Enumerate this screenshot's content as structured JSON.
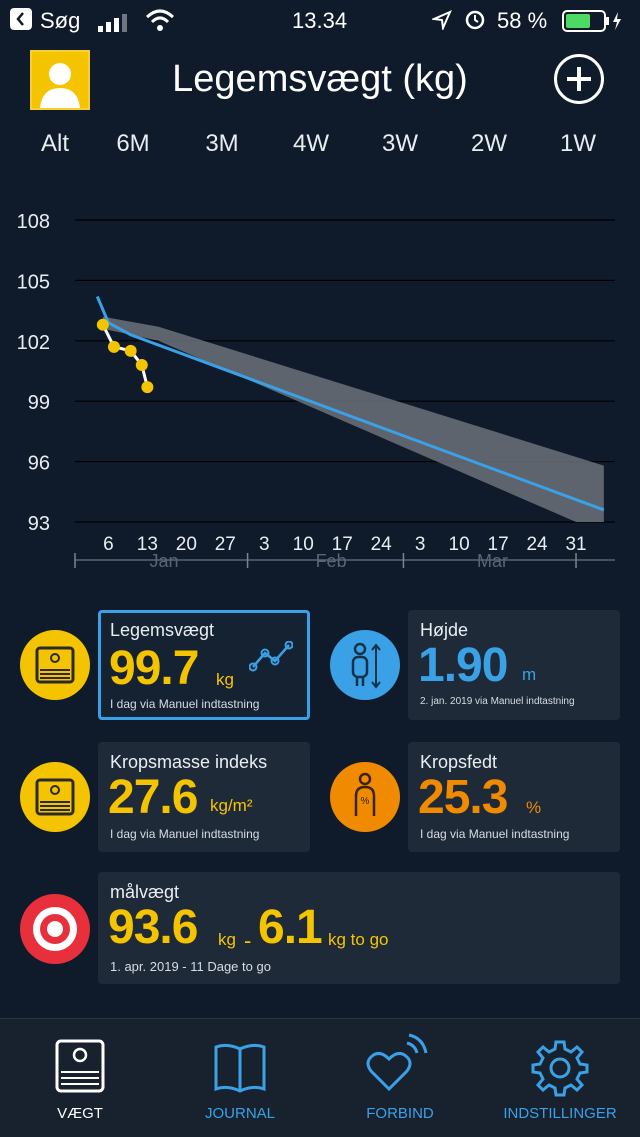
{
  "status_bar": {
    "back_label": "Søg",
    "time": "13.34",
    "battery": "58 %"
  },
  "header": {
    "title": "Legemsvægt (kg)"
  },
  "range_tabs": [
    "Alt",
    "6M",
    "3M",
    "4W",
    "3W",
    "2W",
    "1W"
  ],
  "chart_data": {
    "type": "line",
    "ylim": [
      93,
      108
    ],
    "y_ticks": [
      "108",
      "105",
      "102",
      "99",
      "96",
      "93"
    ],
    "x_ticks": [
      "6",
      "13",
      "20",
      "27",
      "3",
      "10",
      "17",
      "24",
      "3",
      "10",
      "17",
      "24",
      "31"
    ],
    "months": [
      "Jan",
      "Feb",
      "Mar"
    ],
    "series": [
      {
        "kind": "measured",
        "color": "#f5c400",
        "points": [
          [
            5,
            102.8
          ],
          [
            7,
            101.7
          ],
          [
            10,
            101.5
          ],
          [
            12,
            100.8
          ],
          [
            13,
            99.7
          ]
        ]
      },
      {
        "kind": "trend",
        "color": "#3aa1e6",
        "points": [
          [
            4,
            104.2
          ],
          [
            6,
            102.9
          ],
          [
            10,
            102.3
          ],
          [
            95,
            93.6
          ]
        ]
      }
    ],
    "band": {
      "color": "#6b717a",
      "upper": [
        [
          5,
          103.2
        ],
        [
          15,
          102.7
        ],
        [
          95,
          95.8
        ]
      ],
      "lower": [
        [
          5,
          102.6
        ],
        [
          15,
          102.0
        ],
        [
          90,
          93.0
        ],
        [
          95,
          93.0
        ]
      ]
    }
  },
  "cards": {
    "weight": {
      "label": "Legemsvægt",
      "value": "99.7",
      "unit": "kg",
      "sub": "I dag via Manuel indtastning"
    },
    "height": {
      "label": "Højde",
      "value": "1.90",
      "unit": "m",
      "sub": "2. jan. 2019 via Manuel indtastning"
    },
    "bmi": {
      "label": "Kropsmasse indeks",
      "value": "27.6",
      "unit": "kg/m²",
      "sub": "I dag via Manuel indtastning"
    },
    "fat": {
      "label": "Kropsfedt",
      "value": "25.3",
      "unit": "%",
      "sub": "I dag via Manuel indtastning"
    },
    "goal": {
      "label": "målvægt",
      "value": "93.6",
      "unit": "kg",
      "dash": "-",
      "togo": "6.1",
      "togo_unit": "kg to go",
      "sub": "1. apr. 2019 - 11 Dage to go"
    }
  },
  "tabbar": [
    {
      "label": "VÆGT",
      "icon": "scale-icon"
    },
    {
      "label": "JOURNAL",
      "icon": "book-icon"
    },
    {
      "label": "FORBIND",
      "icon": "heart-signal-icon"
    },
    {
      "label": "INDSTILLINGER",
      "icon": "gear-icon"
    }
  ]
}
